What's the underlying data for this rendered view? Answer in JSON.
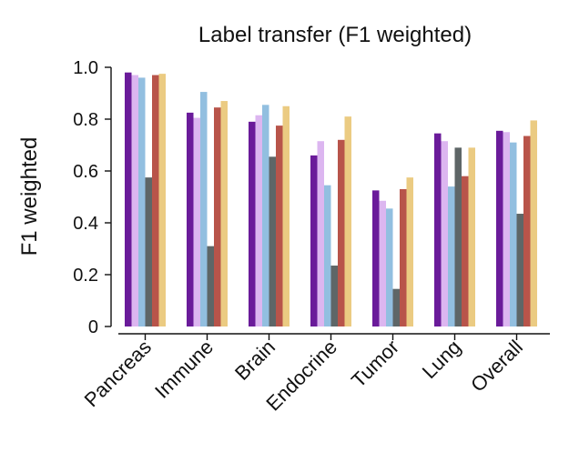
{
  "chart_data": {
    "type": "bar",
    "title": "Label transfer (F1 weighted)",
    "xlabel": "",
    "ylabel": "F1 weighted",
    "ylim": [
      0,
      1.0
    ],
    "yticks": [
      "0",
      "0.2",
      "0.4",
      "0.6",
      "0.8",
      "1.0"
    ],
    "categories": [
      "Pancreas",
      "Immune",
      "Brain",
      "Endocrine",
      "Tumor",
      "Lung",
      "Overall"
    ],
    "grid": false,
    "legend": "none",
    "series": [
      {
        "color": "#6a1b9a",
        "values": [
          0.98,
          0.825,
          0.79,
          0.66,
          0.525,
          0.745,
          0.755
        ]
      },
      {
        "color": "#dcb6f0",
        "values": [
          0.97,
          0.805,
          0.815,
          0.715,
          0.485,
          0.715,
          0.75
        ]
      },
      {
        "color": "#92bfe0",
        "values": [
          0.96,
          0.905,
          0.855,
          0.545,
          0.455,
          0.54,
          0.71
        ]
      },
      {
        "color": "#5e6667",
        "values": [
          0.575,
          0.31,
          0.655,
          0.235,
          0.145,
          0.69,
          0.435
        ]
      },
      {
        "color": "#b8544a",
        "values": [
          0.97,
          0.845,
          0.775,
          0.72,
          0.53,
          0.58,
          0.735
        ]
      },
      {
        "color": "#ebcb82",
        "values": [
          0.975,
          0.87,
          0.85,
          0.81,
          0.575,
          0.69,
          0.795
        ]
      }
    ]
  }
}
